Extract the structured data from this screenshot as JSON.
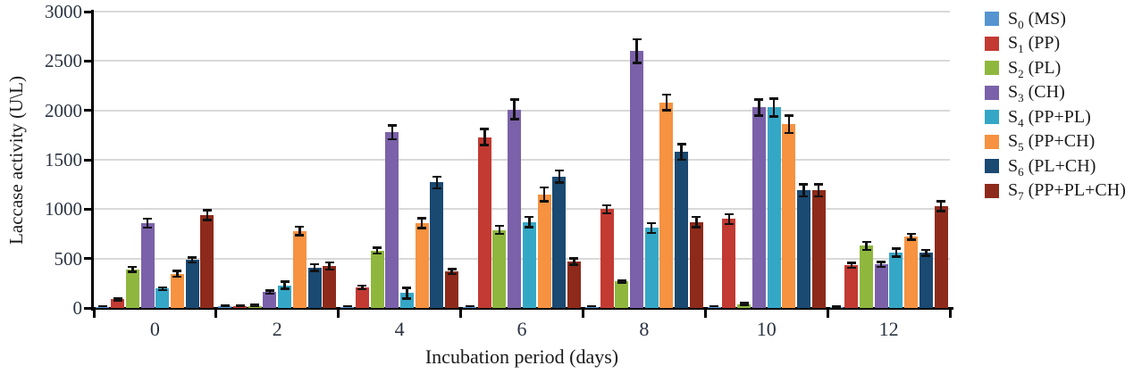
{
  "chart_data": {
    "type": "bar",
    "title": "",
    "xlabel": "Incubation period (days)",
    "ylabel": "Laccase activity (U\\L)",
    "categories": [
      "0",
      "2",
      "4",
      "6",
      "8",
      "10",
      "12"
    ],
    "ylim": [
      0,
      3000
    ],
    "ytick_step": 500,
    "ytick_labels": [
      "0",
      "500",
      "1000",
      "1500",
      "2000",
      "2500",
      "3000"
    ],
    "grid": true,
    "legend_position": "right",
    "error_bars": true,
    "axis_color": "#000000",
    "gridline_color": "#D9D9D9",
    "series": [
      {
        "name": "S0 (MS)",
        "label_base": "S",
        "label_sub": "0",
        "label_desc": "(MS)",
        "color": "#5594D0",
        "values": [
          10,
          15,
          10,
          10,
          10,
          12,
          8
        ],
        "errors": [
          8,
          8,
          8,
          8,
          8,
          8,
          4
        ]
      },
      {
        "name": "S1 (PP)",
        "label_base": "S",
        "label_sub": "1",
        "label_desc": "(PP)",
        "color": "#C23A32",
        "values": [
          90,
          20,
          210,
          1730,
          1000,
          900,
          430
        ],
        "errors": [
          12,
          8,
          18,
          80,
          40,
          50,
          25
        ]
      },
      {
        "name": "S2 (PL)",
        "label_base": "S",
        "label_sub": "2",
        "label_desc": "(PL)",
        "color": "#8FB73E",
        "values": [
          390,
          22,
          580,
          790,
          270,
          40,
          630
        ],
        "errors": [
          25,
          8,
          30,
          40,
          10,
          8,
          40
        ]
      },
      {
        "name": "S3 (CH)",
        "label_base": "S",
        "label_sub": "3",
        "label_desc": "(CH)",
        "color": "#7B61A9",
        "values": [
          860,
          160,
          1780,
          2010,
          2600,
          2030,
          440
        ],
        "errors": [
          45,
          15,
          70,
          100,
          120,
          80,
          25
        ]
      },
      {
        "name": "S4 (PP+PL)",
        "label_base": "S",
        "label_sub": "4",
        "label_desc": "(PP+PL)",
        "color": "#35A7C6",
        "values": [
          195,
          230,
          150,
          870,
          810,
          2030,
          560
        ],
        "errors": [
          15,
          35,
          55,
          50,
          50,
          90,
          40
        ]
      },
      {
        "name": "S5 (PP+CH)",
        "label_base": "S",
        "label_sub": "5",
        "label_desc": "(PP+CH)",
        "color": "#F69240",
        "values": [
          345,
          780,
          860,
          1150,
          2080,
          1860,
          720
        ],
        "errors": [
          30,
          45,
          50,
          70,
          80,
          90,
          30
        ]
      },
      {
        "name": "S6 (PL+CH)",
        "label_base": "S",
        "label_sub": "6",
        "label_desc": "(PL+CH)",
        "color": "#1A4971",
        "values": [
          485,
          410,
          1270,
          1330,
          1580,
          1190,
          560
        ],
        "errors": [
          25,
          35,
          60,
          60,
          80,
          60,
          30
        ]
      },
      {
        "name": "S7 (PP+PL+CH)",
        "label_base": "S",
        "label_sub": "7",
        "label_desc": "(PP+PL+CH)",
        "color": "#8E2A1B",
        "values": [
          940,
          425,
          370,
          470,
          870,
          1190,
          1030
        ],
        "errors": [
          50,
          35,
          25,
          30,
          50,
          60,
          50
        ]
      }
    ]
  }
}
